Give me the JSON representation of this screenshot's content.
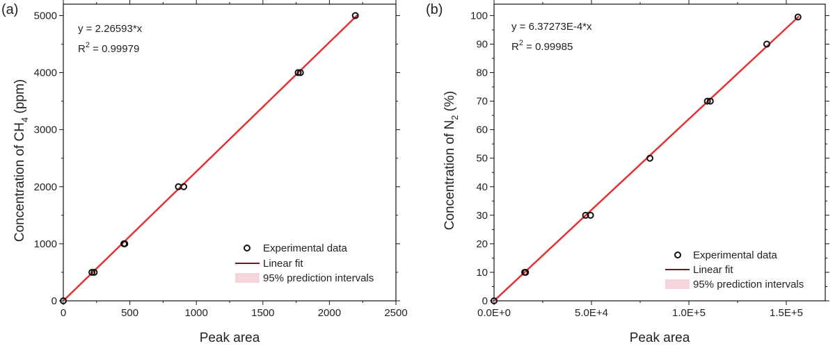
{
  "chart_data": [
    {
      "type": "scatter",
      "panel_label": "(a)",
      "xlabel": "Peak area",
      "ylabel": "Concentration of CH",
      "ylabel_sub": "4",
      "ylabel_suffix": " (ppm)",
      "xlim": [
        0,
        2500
      ],
      "ylim": [
        0,
        5200
      ],
      "xticks": [
        0,
        500,
        1000,
        1500,
        2000,
        2500
      ],
      "xtick_labels": [
        "0",
        "500",
        "1000",
        "1500",
        "2000",
        "2500"
      ],
      "yticks": [
        0,
        1000,
        2000,
        3000,
        4000,
        5000
      ],
      "ytick_labels": [
        "0",
        "1000",
        "2000",
        "3000",
        "4000",
        "5000"
      ],
      "equation": "y =  2.26593*x",
      "r2_prefix": "R",
      "r2_sup": "2",
      "r2_value": " = 0.99979",
      "slope": 2.26593,
      "fit_range": [
        0,
        2210
      ],
      "points": [
        {
          "x": 0,
          "y": 0
        },
        {
          "x": 215,
          "y": 500
        },
        {
          "x": 232,
          "y": 500
        },
        {
          "x": 455,
          "y": 1000
        },
        {
          "x": 462,
          "y": 1000
        },
        {
          "x": 865,
          "y": 2000
        },
        {
          "x": 905,
          "y": 2000
        },
        {
          "x": 1765,
          "y": 4000
        },
        {
          "x": 1782,
          "y": 4000
        },
        {
          "x": 2195,
          "y": 5000
        }
      ],
      "legend": [
        "Experimental data",
        "Linear fit",
        "95% prediction intervals"
      ],
      "legend_position": "bottom-right",
      "colors": {
        "points": "#111111",
        "fit": "#7a1020",
        "band": "#f3c9cf",
        "fit_main": "#e0231f"
      }
    },
    {
      "type": "scatter",
      "panel_label": "(b)",
      "xlabel": "Peak area",
      "ylabel": "Concentration of N",
      "ylabel_sub": "2",
      "ylabel_suffix": " (%)",
      "xlim": [
        0,
        170000
      ],
      "ylim": [
        0,
        104
      ],
      "xticks": [
        0,
        50000,
        100000,
        150000
      ],
      "xtick_labels": [
        "0.0E+0",
        "5.0E+4",
        "1.0E+5",
        "1.5E+5"
      ],
      "yticks": [
        0,
        10,
        20,
        30,
        40,
        50,
        60,
        70,
        80,
        90,
        100
      ],
      "ytick_labels": [
        "0",
        "10",
        "20",
        "30",
        "40",
        "50",
        "60",
        "70",
        "80",
        "90",
        "100"
      ],
      "equation": "y =  6.37273E-4*x",
      "r2_prefix": "R",
      "r2_sup": "2",
      "r2_value": " = 0.99985",
      "slope": 0.000637273,
      "fit_range": [
        0,
        156500
      ],
      "points": [
        {
          "x": 0,
          "y": 0
        },
        {
          "x": 15700,
          "y": 10
        },
        {
          "x": 16200,
          "y": 10
        },
        {
          "x": 47000,
          "y": 30
        },
        {
          "x": 49500,
          "y": 30
        },
        {
          "x": 80000,
          "y": 50
        },
        {
          "x": 109500,
          "y": 70
        },
        {
          "x": 111000,
          "y": 70
        },
        {
          "x": 140000,
          "y": 90
        },
        {
          "x": 156000,
          "y": 99.5
        }
      ],
      "legend": [
        "Experimental data",
        "Linear fit",
        "95% prediction intervals"
      ],
      "legend_position": "bottom-right",
      "colors": {
        "points": "#111111",
        "fit": "#7a1020",
        "band": "#f3c9cf",
        "fit_main": "#e0231f"
      }
    }
  ]
}
